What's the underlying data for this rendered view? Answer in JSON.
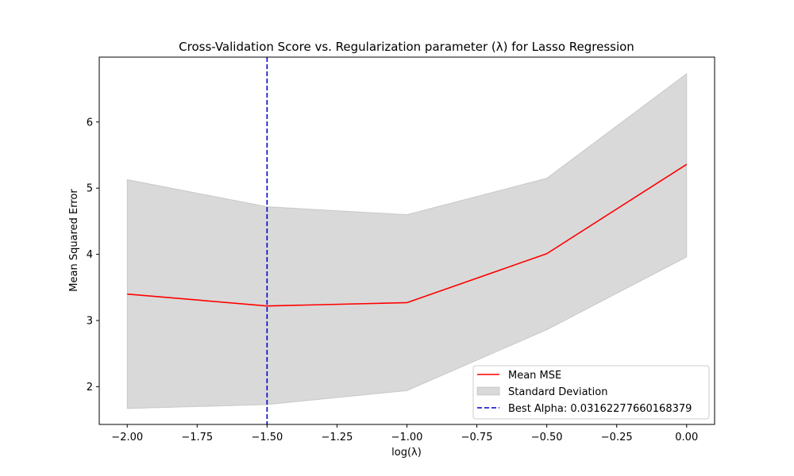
{
  "chart_data": {
    "type": "line",
    "title": "Cross-Validation Score vs. Regularization parameter (λ) for Lasso Regression",
    "xlabel": "log(λ)",
    "ylabel": "Mean Squared Error",
    "xlim": [
      -2.1,
      0.1
    ],
    "ylim": [
      1.43,
      6.98
    ],
    "xticks": [
      -2.0,
      -1.75,
      -1.5,
      -1.25,
      -1.0,
      -0.75,
      -0.5,
      -0.25,
      0.0
    ],
    "xtick_labels": [
      "−2.00",
      "−1.75",
      "−1.50",
      "−1.25",
      "−1.00",
      "−0.75",
      "−0.50",
      "−0.25",
      "0.00"
    ],
    "yticks": [
      2,
      3,
      4,
      5,
      6
    ],
    "ytick_labels": [
      "2",
      "3",
      "4",
      "5",
      "6"
    ],
    "grid": false,
    "legend_position": "bottom-right",
    "x": [
      -2.0,
      -1.5,
      -1.0,
      -0.5,
      0.0
    ],
    "series": [
      {
        "name": "Mean MSE",
        "kind": "line",
        "color": "#ff0000",
        "values": [
          3.4,
          3.22,
          3.27,
          4.01,
          5.36
        ]
      },
      {
        "name": "Standard Deviation",
        "kind": "band",
        "color": "#808080",
        "lower": [
          1.67,
          1.73,
          1.94,
          2.86,
          3.96
        ],
        "upper": [
          5.13,
          4.72,
          4.6,
          5.15,
          6.73
        ]
      },
      {
        "name": "Best Alpha: 0.03162277660168379",
        "kind": "vline",
        "color": "#0000cc",
        "x_value": -1.5
      }
    ]
  }
}
